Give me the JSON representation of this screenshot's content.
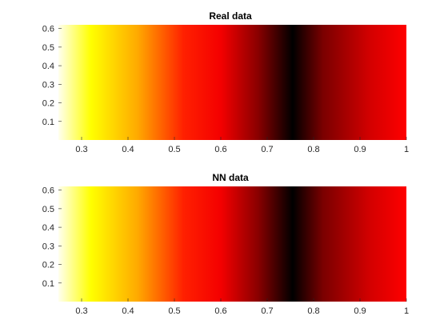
{
  "chart_data": [
    {
      "type": "heatmap",
      "title": "Real data",
      "xlim": [
        0.25,
        1.0
      ],
      "ylim": [
        0.0,
        0.62
      ],
      "xticks": [
        0.3,
        0.4,
        0.5,
        0.6,
        0.7,
        0.8,
        0.9,
        1.0
      ],
      "xtick_labels": [
        "0.3",
        "0.4",
        "0.5",
        "0.6",
        "0.7",
        "0.8",
        "0.9",
        "1"
      ],
      "yticks": [
        0.1,
        0.2,
        0.3,
        0.4,
        0.5,
        0.6
      ],
      "ytick_labels": [
        "0.1",
        "0.2",
        "0.3",
        "0.4",
        "0.5",
        "0.6"
      ],
      "colormap": "hot",
      "color_profile": [
        {
          "x": 0.25,
          "color": "#fffff0"
        },
        {
          "x": 0.32,
          "color": "#ffff00"
        },
        {
          "x": 0.42,
          "color": "#ffaa00"
        },
        {
          "x": 0.52,
          "color": "#ff2000"
        },
        {
          "x": 0.6,
          "color": "#f40000"
        },
        {
          "x": 0.68,
          "color": "#8a0000"
        },
        {
          "x": 0.755,
          "color": "#000000"
        },
        {
          "x": 0.82,
          "color": "#7a0000"
        },
        {
          "x": 0.92,
          "color": "#d20000"
        },
        {
          "x": 1.0,
          "color": "#ff0000"
        }
      ],
      "grid": false
    },
    {
      "type": "heatmap",
      "title": "NN data",
      "xlim": [
        0.25,
        1.0
      ],
      "ylim": [
        0.0,
        0.62
      ],
      "xticks": [
        0.3,
        0.4,
        0.5,
        0.6,
        0.7,
        0.8,
        0.9,
        1.0
      ],
      "xtick_labels": [
        "0.3",
        "0.4",
        "0.5",
        "0.6",
        "0.7",
        "0.8",
        "0.9",
        "1"
      ],
      "yticks": [
        0.1,
        0.2,
        0.3,
        0.4,
        0.5,
        0.6
      ],
      "ytick_labels": [
        "0.1",
        "0.2",
        "0.3",
        "0.4",
        "0.5",
        "0.6"
      ],
      "colormap": "hot",
      "color_profile": [
        {
          "x": 0.25,
          "color": "#fffff0"
        },
        {
          "x": 0.32,
          "color": "#ffff00"
        },
        {
          "x": 0.42,
          "color": "#ffaa00"
        },
        {
          "x": 0.52,
          "color": "#ff2000"
        },
        {
          "x": 0.6,
          "color": "#f40000"
        },
        {
          "x": 0.68,
          "color": "#8a0000"
        },
        {
          "x": 0.755,
          "color": "#000000"
        },
        {
          "x": 0.82,
          "color": "#7a0000"
        },
        {
          "x": 0.92,
          "color": "#d20000"
        },
        {
          "x": 1.0,
          "color": "#ff0000"
        }
      ],
      "grid": false
    }
  ]
}
